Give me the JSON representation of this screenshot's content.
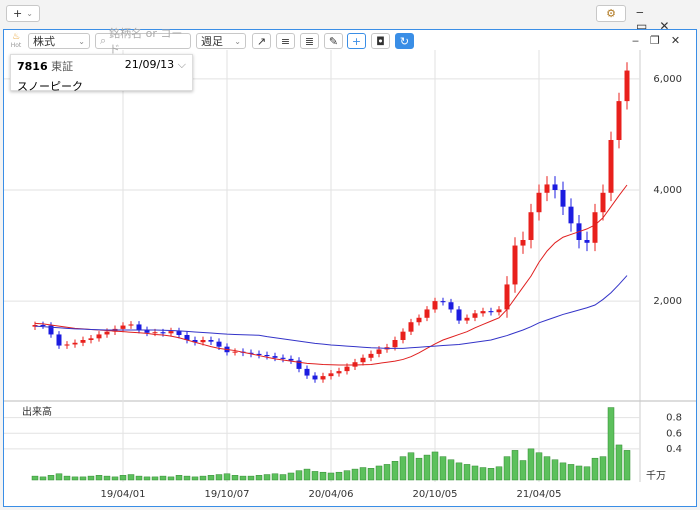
{
  "window": {
    "add_button": "+"
  },
  "toolbar": {
    "hot": "Hot",
    "market": "株式",
    "search_placeholder": "銘柄名 or コード",
    "period": "週足"
  },
  "info": {
    "code": "7816",
    "exchange": "東証",
    "date": "21/09/13",
    "name": "スノーピーク"
  },
  "chart_data": [
    {
      "type": "candlestick",
      "up_color": "#e8201c",
      "down_color": "#1c1ce0",
      "categories": [
        null,
        null,
        null,
        null,
        null,
        null,
        null,
        null,
        null,
        null,
        null,
        "19/04/01",
        null,
        null,
        null,
        null,
        null,
        null,
        null,
        null,
        null,
        null,
        null,
        null,
        "19/10/07",
        null,
        null,
        null,
        null,
        null,
        null,
        null,
        null,
        null,
        null,
        null,
        null,
        "20/04/06",
        null,
        null,
        null,
        null,
        null,
        null,
        null,
        null,
        null,
        null,
        null,
        null,
        "20/10/05",
        null,
        null,
        null,
        null,
        null,
        null,
        null,
        null,
        null,
        null,
        null,
        null,
        "21/04/05",
        null,
        null,
        null,
        null,
        null,
        null,
        null,
        null,
        null,
        null,
        null
      ],
      "open": [
        1540,
        1570,
        1560,
        1400,
        1200,
        1220,
        1250,
        1300,
        1330,
        1400,
        1450,
        1500,
        1560,
        1580,
        1480,
        1430,
        1440,
        1420,
        1460,
        1390,
        1300,
        1260,
        1300,
        1270,
        1180,
        1080,
        1090,
        1070,
        1050,
        1030,
        1010,
        980,
        960,
        930,
        780,
        660,
        590,
        650,
        700,
        740,
        820,
        900,
        980,
        1050,
        1130,
        1170,
        1300,
        1450,
        1620,
        1700,
        1850,
        2000,
        1980,
        1850,
        1650,
        1700,
        1780,
        1820,
        1800,
        1850,
        2300,
        3000,
        3100,
        3600,
        3950,
        4100,
        4000,
        3700,
        3400,
        3100,
        3050,
        3600,
        3950,
        4900,
        5600
      ],
      "high": [
        1630,
        1630,
        1620,
        1460,
        1280,
        1310,
        1360,
        1390,
        1460,
        1510,
        1560,
        1620,
        1640,
        1640,
        1540,
        1500,
        1500,
        1520,
        1520,
        1450,
        1360,
        1360,
        1360,
        1330,
        1240,
        1150,
        1150,
        1130,
        1110,
        1090,
        1070,
        1040,
        1020,
        990,
        840,
        720,
        710,
        760,
        800,
        880,
        960,
        1040,
        1110,
        1190,
        1230,
        1360,
        1510,
        1680,
        1760,
        1910,
        2060,
        2060,
        2040,
        1910,
        1760,
        1840,
        1880,
        1880,
        1910,
        2450,
        3150,
        3250,
        3750,
        4100,
        4250,
        4250,
        4150,
        3850,
        3550,
        3250,
        3750,
        4100,
        5050,
        5750,
        6300
      ],
      "low": [
        1480,
        1500,
        1340,
        1140,
        1140,
        1160,
        1190,
        1240,
        1270,
        1340,
        1390,
        1440,
        1500,
        1420,
        1370,
        1370,
        1360,
        1360,
        1330,
        1240,
        1200,
        1200,
        1210,
        1120,
        1020,
        1020,
        1010,
        990,
        970,
        950,
        920,
        900,
        870,
        720,
        600,
        530,
        530,
        590,
        640,
        680,
        760,
        840,
        920,
        990,
        1070,
        1110,
        1240,
        1390,
        1560,
        1640,
        1790,
        1920,
        1790,
        1590,
        1590,
        1640,
        1720,
        1740,
        1740,
        1700,
        2150,
        2850,
        2950,
        3450,
        3800,
        3850,
        3550,
        3250,
        2950,
        2900,
        2900,
        3450,
        3800,
        4750,
        5450
      ],
      "close": [
        1570,
        1560,
        1400,
        1200,
        1220,
        1250,
        1300,
        1330,
        1400,
        1450,
        1500,
        1560,
        1580,
        1480,
        1430,
        1440,
        1420,
        1460,
        1390,
        1300,
        1260,
        1300,
        1270,
        1180,
        1080,
        1090,
        1070,
        1050,
        1030,
        1010,
        980,
        960,
        930,
        780,
        660,
        590,
        650,
        700,
        740,
        820,
        900,
        980,
        1050,
        1130,
        1170,
        1300,
        1450,
        1620,
        1700,
        1850,
        2000,
        1980,
        1850,
        1650,
        1700,
        1780,
        1820,
        1800,
        1850,
        2300,
        3000,
        3100,
        3600,
        3950,
        4100,
        4000,
        3700,
        3400,
        3100,
        3050,
        3600,
        3950,
        4900,
        5600,
        6150
      ],
      "moving_averages": [
        {
          "color": "#e02020",
          "values": [
            1600,
            1590,
            1570,
            1550,
            1530,
            1510,
            1500,
            1490,
            1480,
            1470,
            1460,
            1450,
            1440,
            1430,
            1420,
            1400,
            1390,
            1370,
            1340,
            1300,
            1260,
            1220,
            1180,
            1150,
            1130,
            1110,
            1080,
            1050,
            1020,
            990,
            960,
            940,
            920,
            900,
            880,
            870,
            860,
            855,
            850,
            850,
            850,
            855,
            860,
            880,
            900,
            920,
            950,
            1000,
            1070,
            1150,
            1230,
            1300,
            1350,
            1400,
            1450,
            1520,
            1580,
            1640,
            1700,
            1850,
            2050,
            2250,
            2450,
            2700,
            2900,
            3050,
            3150,
            3200,
            3250,
            3300,
            3370,
            3500,
            3700,
            3900,
            4090
          ]
        },
        {
          "color": "#3434c8",
          "values": [
            1550,
            1540,
            1530,
            1520,
            1510,
            1500,
            1495,
            1490,
            1485,
            1480,
            1480,
            1480,
            1480,
            1480,
            1480,
            1480,
            1475,
            1470,
            1465,
            1455,
            1445,
            1435,
            1425,
            1415,
            1405,
            1400,
            1395,
            1390,
            1385,
            1360,
            1340,
            1320,
            1300,
            1280,
            1260,
            1240,
            1225,
            1210,
            1200,
            1190,
            1180,
            1170,
            1160,
            1155,
            1150,
            1150,
            1150,
            1160,
            1170,
            1180,
            1190,
            1200,
            1210,
            1220,
            1240,
            1260,
            1280,
            1300,
            1340,
            1380,
            1430,
            1480,
            1540,
            1610,
            1660,
            1710,
            1760,
            1800,
            1840,
            1880,
            1930,
            2030,
            2150,
            2300,
            2460
          ]
        }
      ],
      "ylim": [
        220,
        6340
      ],
      "yticks": [
        {
          "value": 2000,
          "label": "2,000"
        },
        {
          "value": 4000,
          "label": "4,000"
        },
        {
          "value": 6000,
          "label": "6,000"
        }
      ],
      "grid": true
    },
    {
      "type": "bar",
      "title": "出来高",
      "unit_label": "千万",
      "color": "#5cc05c",
      "values": [
        0.05,
        0.04,
        0.06,
        0.08,
        0.05,
        0.04,
        0.04,
        0.05,
        0.06,
        0.05,
        0.04,
        0.06,
        0.07,
        0.05,
        0.04,
        0.04,
        0.05,
        0.04,
        0.06,
        0.05,
        0.04,
        0.05,
        0.06,
        0.07,
        0.08,
        0.06,
        0.05,
        0.05,
        0.06,
        0.07,
        0.08,
        0.07,
        0.09,
        0.12,
        0.14,
        0.11,
        0.1,
        0.09,
        0.1,
        0.12,
        0.14,
        0.16,
        0.15,
        0.18,
        0.2,
        0.24,
        0.3,
        0.35,
        0.28,
        0.32,
        0.36,
        0.3,
        0.26,
        0.22,
        0.2,
        0.18,
        0.16,
        0.15,
        0.17,
        0.3,
        0.38,
        0.25,
        0.4,
        0.35,
        0.3,
        0.26,
        0.22,
        0.2,
        0.18,
        0.17,
        0.28,
        0.3,
        0.93,
        0.45,
        0.38
      ],
      "ylim": [
        0,
        0.95
      ],
      "yticks": [
        0.4,
        0.6,
        0.8
      ],
      "grid": true
    }
  ]
}
